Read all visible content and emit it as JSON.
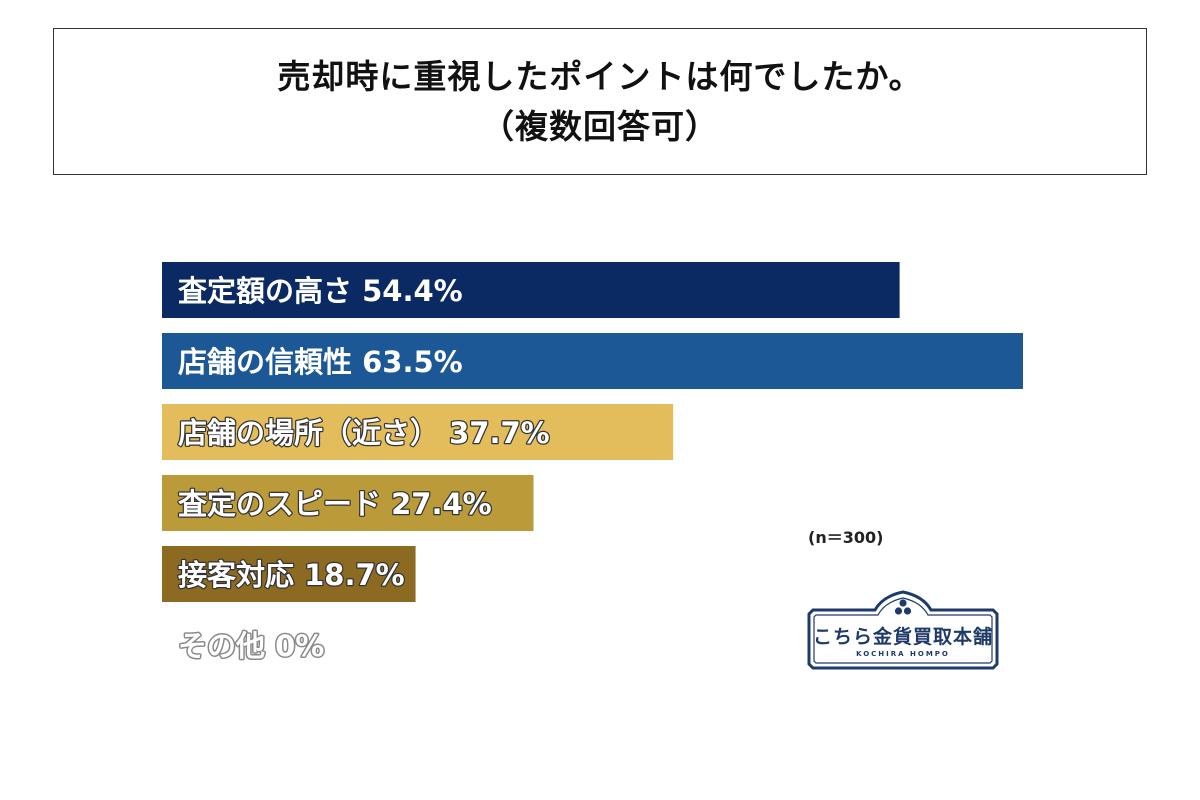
{
  "title": {
    "line1": "売却時に重視したポイントは何でしたか。",
    "line2": "（複数回答可）"
  },
  "note": "(n＝300)",
  "logo": {
    "name": "こちら金貨買取本舗",
    "sub": "KOCHIRA HOMPO",
    "icon": "three-dots-emblem-icon",
    "color": "#1e3a68"
  },
  "chart_data": {
    "type": "bar",
    "orientation": "horizontal",
    "categories": [
      "査定額の高さ",
      "店舗の信頼性",
      "店舗の場所（近さ）",
      "査定のスピード",
      "接客対応",
      "その他"
    ],
    "values": [
      54.4,
      63.5,
      37.7,
      27.4,
      18.7,
      0
    ],
    "labels": [
      "査定額の高さ 54.4%",
      "店舗の信頼性 63.5%",
      "店舗の場所（近さ） 37.7%",
      "査定のスピード 27.4%",
      "接客対応 18.7%",
      "その他 0%"
    ],
    "colors": [
      "#0b2a63",
      "#1d5896",
      "#e3bd5c",
      "#bb9a3a",
      "#8c6a22",
      "#bdbdbd"
    ],
    "unit": "%",
    "xlim": [
      0,
      65
    ],
    "grid": false,
    "legend": "none"
  }
}
